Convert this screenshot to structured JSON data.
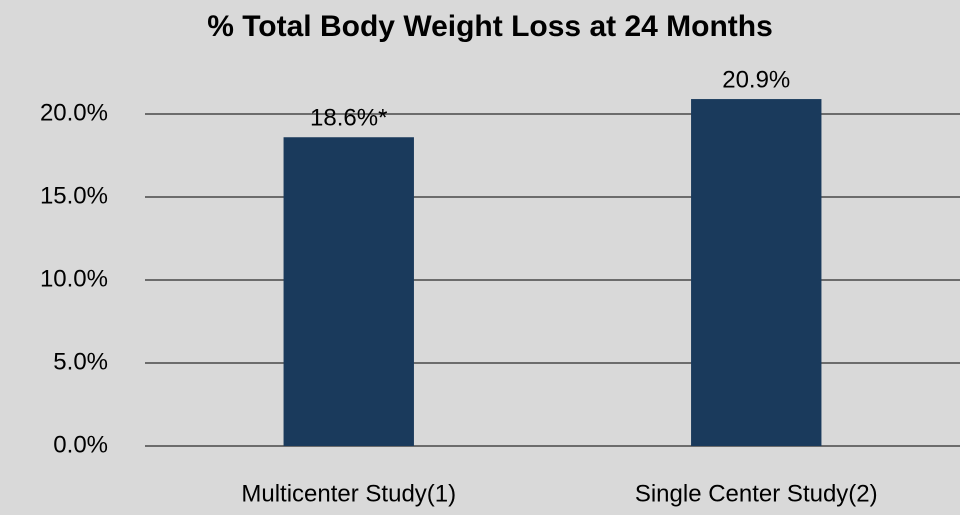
{
  "chart_data": {
    "type": "bar",
    "title": "% Total Body Weight Loss at 24 Months",
    "categories": [
      "Multicenter Study(1)",
      "Single Center Study(2)"
    ],
    "values": [
      18.6,
      20.9
    ],
    "value_labels": [
      "18.6%*",
      "20.9%"
    ],
    "color": "#1a3a5c",
    "ylim": [
      0,
      25
    ],
    "yticks": [
      {
        "value": 0,
        "label": "0.0%"
      },
      {
        "value": 5,
        "label": "5.0%"
      },
      {
        "value": 10,
        "label": "10.0%"
      },
      {
        "value": 15,
        "label": "15.0%"
      },
      {
        "value": 20,
        "label": "20.0%"
      }
    ],
    "grid": true
  }
}
